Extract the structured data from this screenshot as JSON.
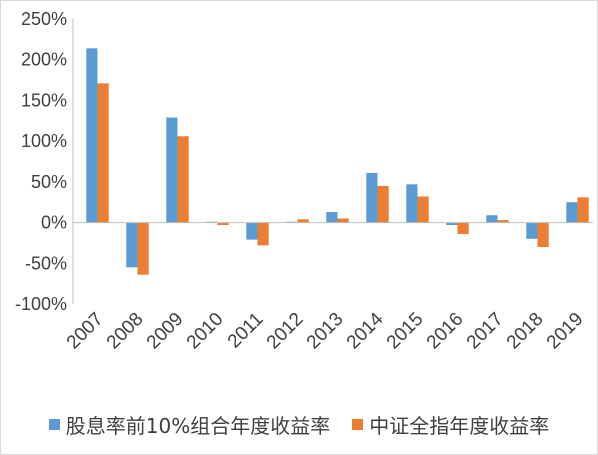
{
  "chart_data": {
    "type": "bar",
    "categories": [
      "2007",
      "2008",
      "2009",
      "2010",
      "2011",
      "2012",
      "2013",
      "2014",
      "2015",
      "2016",
      "2017",
      "2018",
      "2019"
    ],
    "series": [
      {
        "name": "股息率前10%组合年度收益率",
        "color": "#5b9bd5",
        "values": [
          214,
          -55,
          129,
          1,
          -21,
          1,
          13,
          61,
          47,
          -3,
          9,
          -20,
          25
        ]
      },
      {
        "name": "中证全指年度收益率",
        "color": "#ed7d31",
        "values": [
          171,
          -64,
          106,
          -3,
          -28,
          4,
          5,
          45,
          32,
          -14,
          3,
          -30,
          31
        ]
      }
    ],
    "ylim": [
      -100,
      250
    ],
    "yticks": [
      "250%",
      "200%",
      "150%",
      "100%",
      "50%",
      "0%",
      "-50%",
      "-100%"
    ],
    "ytick_values": [
      250,
      200,
      150,
      100,
      50,
      0,
      -50,
      -100
    ],
    "grid": false,
    "legend_position": "bottom"
  }
}
